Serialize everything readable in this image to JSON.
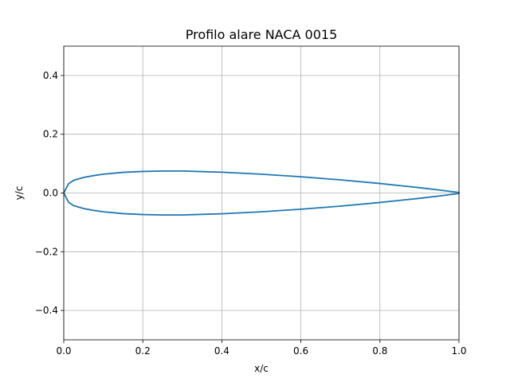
{
  "chart_data": {
    "type": "line",
    "title": "Profilo alare NACA 0015",
    "xlabel": "x/c",
    "ylabel": "y/c",
    "xlim": [
      0.0,
      1.0
    ],
    "ylim": [
      -0.5,
      0.5
    ],
    "grid": true,
    "legend": "none",
    "x_ticks": [
      0.0,
      0.2,
      0.4,
      0.6,
      0.8,
      1.0
    ],
    "y_ticks": [
      -0.4,
      -0.2,
      0.0,
      0.2,
      0.4
    ],
    "x_tick_labels": [
      "0.0",
      "0.2",
      "0.4",
      "0.6",
      "0.8",
      "1.0"
    ],
    "y_tick_labels": [
      "−0.4",
      "−0.2",
      "0.0",
      "0.2",
      "0.4"
    ],
    "series": [
      {
        "color": "#1f77b4",
        "x": [
          1.0,
          0.95,
          0.9,
          0.8,
          0.7,
          0.6,
          0.5,
          0.4,
          0.3,
          0.25,
          0.2,
          0.15,
          0.1,
          0.075,
          0.05,
          0.025,
          0.0125,
          0.0,
          0.0125,
          0.025,
          0.05,
          0.075,
          0.1,
          0.15,
          0.2,
          0.25,
          0.3,
          0.4,
          0.5,
          0.6,
          0.7,
          0.8,
          0.9,
          0.95,
          1.0
        ],
        "y": [
          0.0016,
          0.0101,
          0.0181,
          0.0323,
          0.0447,
          0.0553,
          0.0641,
          0.0707,
          0.0748,
          0.0748,
          0.0734,
          0.0703,
          0.064,
          0.0591,
          0.0528,
          0.043,
          0.0319,
          0.0,
          -0.0319,
          -0.043,
          -0.0528,
          -0.0591,
          -0.064,
          -0.0703,
          -0.0734,
          -0.0748,
          -0.0748,
          -0.0707,
          -0.0641,
          -0.0553,
          -0.0447,
          -0.0323,
          -0.0181,
          -0.0101,
          -0.0016
        ]
      }
    ]
  }
}
